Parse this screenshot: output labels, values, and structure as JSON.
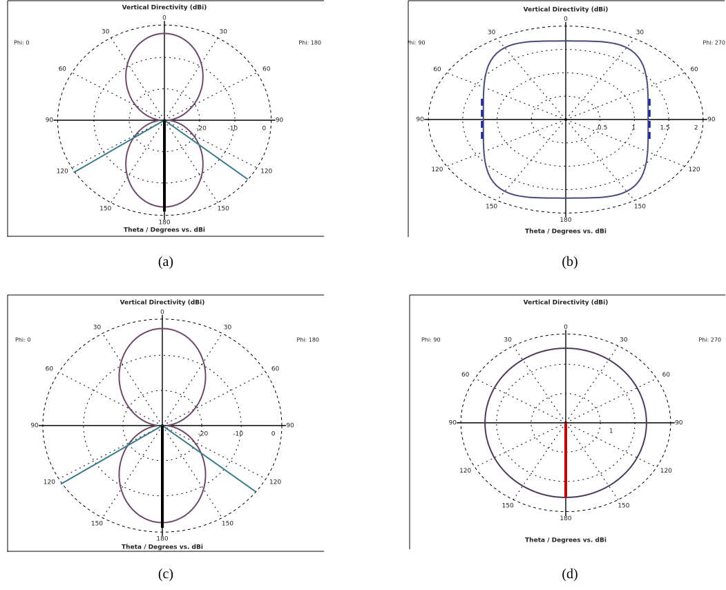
{
  "figure": {
    "captions": [
      "(a)",
      "(b)",
      "(c)",
      "(d)"
    ]
  },
  "chart_data": [
    {
      "type": "polar",
      "title": "Vertical Directivity (dBi)",
      "footer": "Theta / Degrees vs. dBi",
      "corner_left": "Phi: 0",
      "corner_right": "Phi: 180",
      "angle_labels": [
        "0",
        "30",
        "60",
        "90",
        "120",
        "150",
        "180",
        "150",
        "120",
        "90",
        "60",
        "30"
      ],
      "radial_labels": [
        "-20",
        "-10",
        "0"
      ],
      "rlim": [
        -30,
        10
      ],
      "grid": true,
      "pattern": "dipole",
      "colors": {
        "trace": "#6e4a6a",
        "trace2": "#3a7a8a",
        "spike": "#000000"
      }
    },
    {
      "type": "polar",
      "title": "Vertical Directivity (dBi)",
      "footer": "Theta / Degrees vs. dBi",
      "corner_left": "Phi: 90",
      "corner_right": "Phi: 270",
      "angle_labels": [
        "0",
        "30",
        "60",
        "90",
        "120",
        "150",
        "180",
        "150",
        "120",
        "90",
        "60",
        "30"
      ],
      "radial_labels": [
        "0.5",
        "1",
        "1.5",
        "2"
      ],
      "rlim": [
        0,
        2
      ],
      "grid": true,
      "pattern": "omni",
      "colors": {
        "trace": "#4a4a7a",
        "trace2": "#1a2aa0",
        "spike": "#000000"
      }
    },
    {
      "type": "polar",
      "title": "Vertical Directivity (dBi)",
      "footer": "Theta / Degrees vs. dBi",
      "corner_left": "Phi: 0",
      "corner_right": "Phi: 180",
      "angle_labels": [
        "0",
        "30",
        "60",
        "90",
        "120",
        "150",
        "180",
        "150",
        "120",
        "90",
        "60",
        "30"
      ],
      "radial_labels": [
        "-20",
        "-10",
        "0"
      ],
      "rlim": [
        -30,
        10
      ],
      "grid": true,
      "pattern": "dipole",
      "colors": {
        "trace": "#6e4a6a",
        "trace2": "#3a7a8a",
        "spike": "#000000"
      }
    },
    {
      "type": "polar",
      "title": "Vertical Directivity (dBi)",
      "footer": "Theta / Degrees vs. dBi",
      "corner_left": "Phi: 90",
      "corner_right": "Phi: 270",
      "angle_labels": [
        "0",
        "30",
        "60",
        "90",
        "120",
        "150",
        "180",
        "150",
        "120",
        "90",
        "60",
        "30"
      ],
      "radial_labels": [
        "1"
      ],
      "rlim": [
        0,
        2
      ],
      "grid": true,
      "pattern": "circle",
      "colors": {
        "trace": "#4a3a5a",
        "trace2": "#4a3a5a",
        "spike": "#c00000"
      }
    }
  ]
}
